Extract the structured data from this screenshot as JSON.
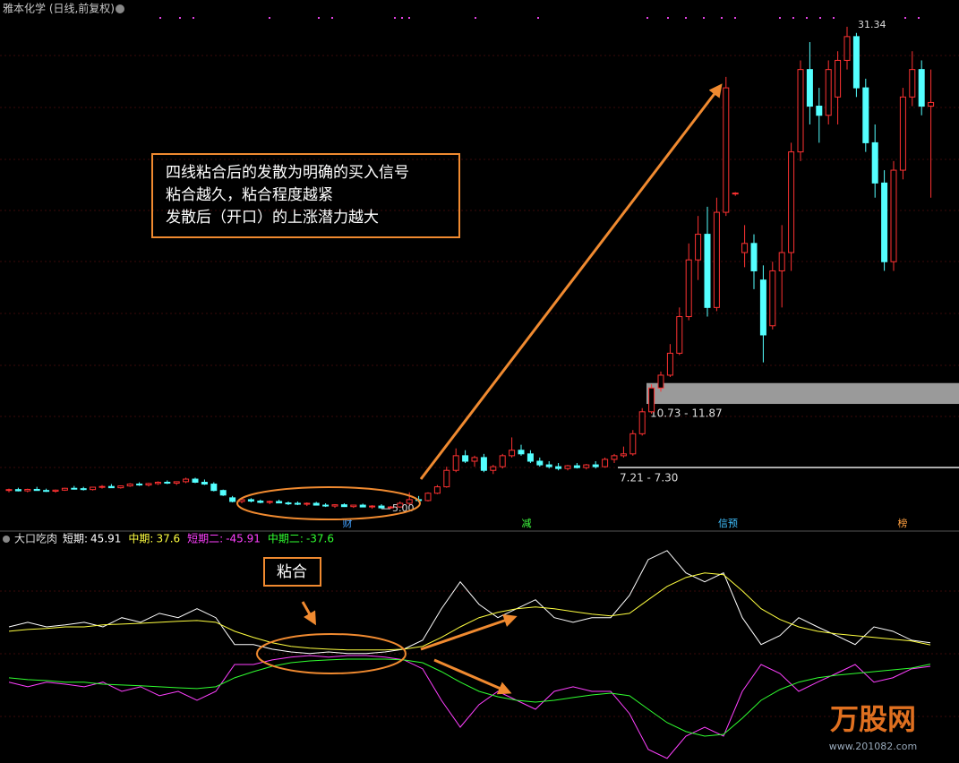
{
  "header": {
    "title": "雅本化学 (日线,前复权)"
  },
  "chart_data": [
    {
      "type": "candlestick",
      "up_color": "#ff3232",
      "down_color": "#54ffff",
      "ylim": [
        3.93,
        32.8
      ],
      "ohlc": [
        [
          6.0,
          6.1,
          5.9,
          6.05
        ],
        [
          6.05,
          6.15,
          5.95,
          5.98
        ],
        [
          5.98,
          6.1,
          5.9,
          6.06
        ],
        [
          6.06,
          6.2,
          6.0,
          6.0
        ],
        [
          6.0,
          6.1,
          5.92,
          5.96
        ],
        [
          5.96,
          6.05,
          5.88,
          6.02
        ],
        [
          6.02,
          6.15,
          5.98,
          6.12
        ],
        [
          6.12,
          6.25,
          6.05,
          6.1
        ],
        [
          6.1,
          6.2,
          6.0,
          6.05
        ],
        [
          6.05,
          6.2,
          6.0,
          6.18
        ],
        [
          6.18,
          6.3,
          6.1,
          6.22
        ],
        [
          6.22,
          6.35,
          6.15,
          6.15
        ],
        [
          6.15,
          6.28,
          6.1,
          6.25
        ],
        [
          6.25,
          6.4,
          6.2,
          6.35
        ],
        [
          6.35,
          6.45,
          6.25,
          6.3
        ],
        [
          6.3,
          6.42,
          6.22,
          6.38
        ],
        [
          6.38,
          6.5,
          6.3,
          6.45
        ],
        [
          6.45,
          6.55,
          6.35,
          6.4
        ],
        [
          6.4,
          6.5,
          6.3,
          6.48
        ],
        [
          6.48,
          6.7,
          6.4,
          6.62
        ],
        [
          6.62,
          6.7,
          6.4,
          6.45
        ],
        [
          6.45,
          6.6,
          6.3,
          6.35
        ],
        [
          6.35,
          6.45,
          5.95,
          6.0
        ],
        [
          6.0,
          6.05,
          5.7,
          5.75
        ],
        [
          5.6,
          5.7,
          5.35,
          5.4
        ],
        [
          5.4,
          5.55,
          5.3,
          5.5
        ],
        [
          5.5,
          5.58,
          5.35,
          5.42
        ],
        [
          5.42,
          5.5,
          5.3,
          5.35
        ],
        [
          5.35,
          5.45,
          5.25,
          5.4
        ],
        [
          5.4,
          5.5,
          5.3,
          5.32
        ],
        [
          5.32,
          5.4,
          5.2,
          5.3
        ],
        [
          5.3,
          5.4,
          5.2,
          5.25
        ],
        [
          5.25,
          5.35,
          5.15,
          5.3
        ],
        [
          5.3,
          5.38,
          5.18,
          5.2
        ],
        [
          5.2,
          5.3,
          5.1,
          5.15
        ],
        [
          5.15,
          5.25,
          5.05,
          5.22
        ],
        [
          5.22,
          5.3,
          5.1,
          5.12
        ],
        [
          5.12,
          5.22,
          5.05,
          5.2
        ],
        [
          5.2,
          5.28,
          5.08,
          5.1
        ],
        [
          5.1,
          5.2,
          5.0,
          5.15
        ],
        [
          5.15,
          5.25,
          5.0,
          5.05
        ],
        [
          5.05,
          5.15,
          5.0,
          5.1
        ],
        [
          5.1,
          5.4,
          5.05,
          5.3
        ],
        [
          5.3,
          5.9,
          5.2,
          5.5
        ],
        [
          5.5,
          5.7,
          5.35,
          5.45
        ],
        [
          5.45,
          5.9,
          5.4,
          5.85
        ],
        [
          5.85,
          6.3,
          5.8,
          6.2
        ],
        [
          6.2,
          7.3,
          6.15,
          7.1
        ],
        [
          7.1,
          8.3,
          7.0,
          7.9
        ],
        [
          7.9,
          8.2,
          7.5,
          7.6
        ],
        [
          7.6,
          7.9,
          7.3,
          7.8
        ],
        [
          7.8,
          8.0,
          7.0,
          7.1
        ],
        [
          7.1,
          7.4,
          6.9,
          7.3
        ],
        [
          7.3,
          8.0,
          7.2,
          7.9
        ],
        [
          7.9,
          8.9,
          7.8,
          8.2
        ],
        [
          8.2,
          8.5,
          7.9,
          8.0
        ],
        [
          8.0,
          8.2,
          7.5,
          7.6
        ],
        [
          7.6,
          7.8,
          7.3,
          7.4
        ],
        [
          7.4,
          7.6,
          7.2,
          7.3
        ],
        [
          7.3,
          7.5,
          7.1,
          7.2
        ],
        [
          7.2,
          7.4,
          7.1,
          7.35
        ],
        [
          7.35,
          7.5,
          7.2,
          7.25
        ],
        [
          7.25,
          7.45,
          7.15,
          7.4
        ],
        [
          7.4,
          7.6,
          7.2,
          7.3
        ],
        [
          7.3,
          7.8,
          7.25,
          7.7
        ],
        [
          7.7,
          8.0,
          7.5,
          7.9
        ],
        [
          7.9,
          8.4,
          7.8,
          8.0
        ],
        [
          8.0,
          9.3,
          7.9,
          9.1
        ],
        [
          9.1,
          10.5,
          9.0,
          10.3
        ],
        [
          10.3,
          11.8,
          10.2,
          11.6
        ],
        [
          11.6,
          12.5,
          11.4,
          12.3
        ],
        [
          12.3,
          14.0,
          12.2,
          13.5
        ],
        [
          13.5,
          16.0,
          13.4,
          15.5
        ],
        [
          15.5,
          19.5,
          15.3,
          18.6
        ],
        [
          18.6,
          21.0,
          17.5,
          20.0
        ],
        [
          20.0,
          21.5,
          15.5,
          16.0
        ],
        [
          16.0,
          22.0,
          15.8,
          21.2
        ],
        [
          21.2,
          28.6,
          21.0,
          28.0
        ],
        [
          22.2,
          22.3,
          22.1,
          22.25
        ],
        [
          19.0,
          20.5,
          18.2,
          19.5
        ],
        [
          19.5,
          20.0,
          17.0,
          18.0
        ],
        [
          17.5,
          18.3,
          13.0,
          14.5
        ],
        [
          15.0,
          18.5,
          14.8,
          18.0
        ],
        [
          18.0,
          20.5,
          16.0,
          19.0
        ],
        [
          19.0,
          25.0,
          18.0,
          24.5
        ],
        [
          24.5,
          29.5,
          24.0,
          29.0
        ],
        [
          29.0,
          30.5,
          26.0,
          27.0
        ],
        [
          27.0,
          28.0,
          25.0,
          26.5
        ],
        [
          26.5,
          29.5,
          26.0,
          29.0
        ],
        [
          27.5,
          30.0,
          26.0,
          29.5
        ],
        [
          29.5,
          31.34,
          29.0,
          30.8
        ],
        [
          30.8,
          31.0,
          27.5,
          28.0
        ],
        [
          28.0,
          28.5,
          24.5,
          25.0
        ],
        [
          25.0,
          26.0,
          22.0,
          22.8
        ],
        [
          22.8,
          23.5,
          18.0,
          18.5
        ],
        [
          18.5,
          24.0,
          18.0,
          23.5
        ],
        [
          23.5,
          28.0,
          23.0,
          27.5
        ],
        [
          27.5,
          30.0,
          27.0,
          29.0
        ],
        [
          29.0,
          29.5,
          26.5,
          27.0
        ],
        [
          27.0,
          29.0,
          22.0,
          27.2
        ]
      ],
      "high_index": 90,
      "low_index": 40,
      "low_label": "5.00",
      "zones": [
        {
          "values": [
            10.73,
            11.87
          ],
          "label": "10.73 - 11.87"
        },
        {
          "values": [
            7.21,
            7.3
          ],
          "label": "7.21 - 7.30"
        }
      ],
      "events": [
        "财",
        "减",
        "信预",
        "榜"
      ],
      "annotations": [
        "四线粘合后的发散为明确的买入信号",
        "粘合越久，粘合程度越紧",
        "发散后（开口）的上涨潜力越大"
      ]
    },
    {
      "type": "line",
      "title": "大口吃肉",
      "ylim": [
        -424,
        458
      ],
      "annotation": "粘合",
      "series": [
        {
          "name": "短期:",
          "color": "#ffffff",
          "values": [
            108,
            126,
            108,
            116,
            126,
            108,
            144,
            126,
            161,
            144,
            179,
            144,
            39,
            39,
            21,
            10,
            4,
            10,
            4,
            4,
            10,
            21,
            56,
            179,
            284,
            196,
            144,
            179,
            214,
            144,
            126,
            144,
            144,
            231,
            371,
            406,
            319,
            284,
            319,
            144,
            39,
            74,
            144,
            108,
            74,
            39,
            108,
            91,
            56,
            45.91
          ]
        },
        {
          "name": "中期:",
          "color": "#ffff40",
          "values": [
            91,
            98,
            102,
            108,
            108,
            116,
            119,
            122,
            126,
            130,
            133,
            126,
            91,
            67,
            46,
            32,
            25,
            21,
            18,
            18,
            18,
            21,
            32,
            67,
            108,
            144,
            165,
            179,
            186,
            179,
            168,
            158,
            151,
            161,
            214,
            266,
            301,
            319,
            312,
            249,
            179,
            137,
            108,
            91,
            81,
            74,
            67,
            60,
            53,
            37.6
          ]
        },
        {
          "name": "短期二:",
          "color": "#ff40ff",
          "values": [
            -108,
            -126,
            -108,
            -116,
            -126,
            -108,
            -144,
            -126,
            -161,
            -144,
            -179,
            -144,
            -39,
            -39,
            -21,
            -10,
            -4,
            -10,
            -4,
            -4,
            -10,
            -21,
            -56,
            -179,
            -284,
            -196,
            -144,
            -179,
            -214,
            -144,
            -126,
            -144,
            -144,
            -231,
            -371,
            -406,
            -319,
            -284,
            -319,
            -144,
            -39,
            -74,
            -144,
            -108,
            -74,
            -39,
            -108,
            -91,
            -56,
            -45.91
          ]
        },
        {
          "name": "中期二:",
          "color": "#30ff30",
          "values": [
            -91,
            -98,
            -102,
            -108,
            -108,
            -116,
            -119,
            -122,
            -126,
            -130,
            -133,
            -126,
            -91,
            -67,
            -46,
            -32,
            -25,
            -21,
            -18,
            -18,
            -18,
            -21,
            -32,
            -67,
            -108,
            -144,
            -165,
            -179,
            -186,
            -179,
            -168,
            -158,
            -151,
            -161,
            -214,
            -266,
            -301,
            -319,
            -312,
            -249,
            -179,
            -137,
            -108,
            -91,
            -81,
            -74,
            -67,
            -60,
            -53,
            -37.6
          ]
        }
      ]
    }
  ],
  "watermark": {
    "title": "万股网",
    "url": "www.201082.com"
  }
}
